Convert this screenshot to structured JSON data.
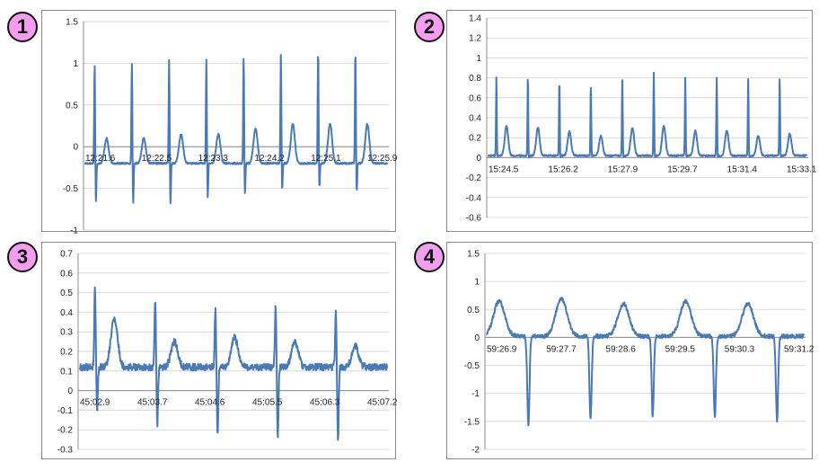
{
  "colors": {
    "trace": "#4a7ab5",
    "badge": "#f59ef0"
  },
  "chart_data": [
    {
      "type": "line",
      "badge": "1",
      "title": "",
      "xlabel": "",
      "ylabel": "",
      "ylim": [
        -1,
        1.5
      ],
      "yticks": [
        "1.5",
        "1",
        "0.5",
        "0",
        "-0.5",
        "-1"
      ],
      "x_tick_labels": [
        "12:21.6",
        "12:22.5",
        "12:23.3",
        "12:24.2",
        "12:25.1",
        "12:25.9"
      ],
      "grid": true,
      "beats": [
        {
          "r": 1.0,
          "s": -0.68,
          "t": 0.1
        },
        {
          "r": 1.0,
          "s": -0.68,
          "t": 0.1
        },
        {
          "r": 1.05,
          "s": -0.7,
          "t": 0.15
        },
        {
          "r": 1.05,
          "s": -0.63,
          "t": 0.15
        },
        {
          "r": 1.07,
          "s": -0.58,
          "t": 0.22
        },
        {
          "r": 1.14,
          "s": -0.53,
          "t": 0.27
        },
        {
          "r": 1.16,
          "s": -0.5,
          "t": 0.27
        },
        {
          "r": 1.15,
          "s": -0.55,
          "t": 0.27
        }
      ],
      "baseline": -0.2
    },
    {
      "type": "line",
      "badge": "2",
      "title": "",
      "xlabel": "",
      "ylabel": "",
      "ylim": [
        -0.6,
        1.4
      ],
      "yticks": [
        "1.4",
        "1.2",
        "1",
        "0.8",
        "0.6",
        "0.4",
        "0.2",
        "0",
        "-0.2",
        "-0.4",
        "-0.6"
      ],
      "x_tick_labels": [
        "15:24.5",
        "15:26.2",
        "15:27.9",
        "15:29.7",
        "15:31.4",
        "15:33.1"
      ],
      "grid": true,
      "beats": [
        {
          "r": 0.83,
          "s": 0.0,
          "t": 0.32
        },
        {
          "r": 0.83,
          "s": 0.0,
          "t": 0.3
        },
        {
          "r": 0.8,
          "s": 0.0,
          "t": 0.26
        },
        {
          "r": 0.75,
          "s": 0.0,
          "t": 0.22
        },
        {
          "r": 0.8,
          "s": 0.0,
          "t": 0.3
        },
        {
          "r": 0.87,
          "s": 0.0,
          "t": 0.32
        },
        {
          "r": 0.8,
          "s": 0.0,
          "t": 0.27
        },
        {
          "r": 0.8,
          "s": 0.0,
          "t": 0.27
        },
        {
          "r": 0.8,
          "s": 0.0,
          "t": 0.22
        },
        {
          "r": 0.8,
          "s": 0.0,
          "t": 0.24
        }
      ],
      "baseline": 0.02
    },
    {
      "type": "line",
      "badge": "3",
      "title": "",
      "xlabel": "",
      "ylabel": "",
      "ylim": [
        -0.3,
        0.7
      ],
      "yticks": [
        "0.7",
        "0.6",
        "0.5",
        "0.4",
        "0.3",
        "0.2",
        "0.1",
        "0",
        "-0.1",
        "-0.2",
        "-0.3"
      ],
      "x_tick_labels": [
        "45:02.9",
        "45:03.7",
        "45:04.6",
        "45:05.5",
        "45:06.3",
        "45:07.2"
      ],
      "grid": true,
      "beats": [
        {
          "r": 0.52,
          "s": -0.1,
          "t": 0.37
        },
        {
          "r": 0.47,
          "s": -0.19,
          "t": 0.25
        },
        {
          "r": 0.42,
          "s": -0.23,
          "t": 0.27
        },
        {
          "r": 0.44,
          "s": -0.25,
          "t": 0.25
        },
        {
          "r": 0.4,
          "s": -0.27,
          "t": 0.23
        }
      ],
      "baseline": 0.12
    },
    {
      "type": "line",
      "badge": "4",
      "title": "",
      "xlabel": "",
      "ylabel": "",
      "ylim": [
        -2,
        1.5
      ],
      "yticks": [
        "1.5",
        "1",
        "0.5",
        "0",
        "-0.5",
        "-1",
        "-1.5",
        "-2"
      ],
      "x_tick_labels": [
        "59:26.9",
        "59:27.7",
        "59:28.6",
        "59:29.5",
        "59:30.3",
        "59:31.2"
      ],
      "grid": true,
      "beats": [
        {
          "r": 0.65,
          "s": -1.55,
          "t": 0.65
        },
        {
          "r": 0.7,
          "s": -1.47,
          "t": 0.7
        },
        {
          "r": 0.6,
          "s": -1.42,
          "t": 0.6
        },
        {
          "r": 0.65,
          "s": -1.45,
          "t": 0.65
        },
        {
          "r": 0.6,
          "s": -1.48,
          "t": 0.6
        }
      ],
      "baseline": 0.02
    }
  ]
}
